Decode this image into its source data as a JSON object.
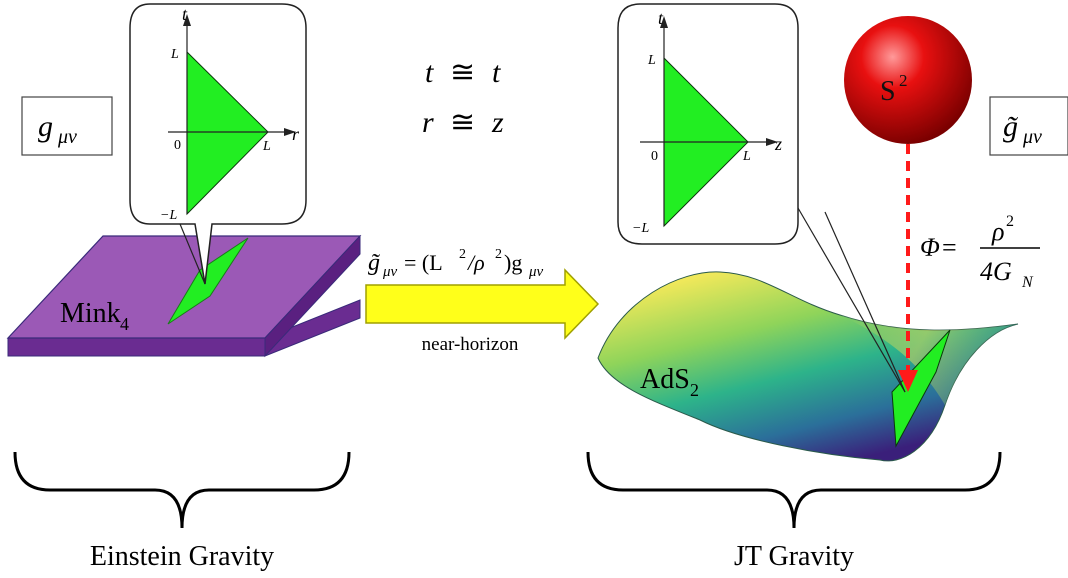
{
  "left": {
    "metric_label": "g",
    "metric_sub": "μν",
    "plane_base": "Mink",
    "plane_sub": "4",
    "caption": "Einstein Gravity",
    "inset": {
      "t_axis": "t",
      "r_axis": "r",
      "L_top": "L",
      "zero": "0",
      "L_right": "L",
      "L_bottom": "−L"
    }
  },
  "center": {
    "eq1_lhs": "t",
    "eq1_op": "≅",
    "eq1_rhs": "t",
    "eq2_lhs": "r",
    "eq2_op": "≅",
    "eq2_rhs": "z",
    "transform_lhs": "g̃",
    "transform_lhs_sub": "μν",
    "transform_mid": " = (L",
    "transform_exp1": "2",
    "transform_slash": "/ρ",
    "transform_exp2": "2",
    "transform_close": ")g",
    "transform_rhs_sub": "μν",
    "arrow_label": "near-horizon"
  },
  "right": {
    "sphere_base": "S",
    "sphere_exp": "2",
    "metric_label": "g̃",
    "metric_sub": "μν",
    "dilaton_lhs": "Φ",
    "dilaton_eq": " =",
    "dilaton_num": "ρ",
    "dilaton_num_exp": "2",
    "dilaton_den": "4G",
    "dilaton_den_sub": "N",
    "surface_base": "AdS",
    "surface_sub": "2",
    "caption": "JT Gravity",
    "inset": {
      "t_axis": "t",
      "z_axis": "z",
      "L_top": "L",
      "zero": "0",
      "L_right": "L",
      "L_bottom": "−L"
    }
  },
  "colors": {
    "triangle": "#22ee22",
    "plane_top": "#9b59b6",
    "plane_side": "#6a2c91",
    "arrow_fill": "#ffff1a",
    "arrow_stroke": "#a0a000",
    "sphere": "#e00000",
    "dashed": "#ff1a1a"
  }
}
